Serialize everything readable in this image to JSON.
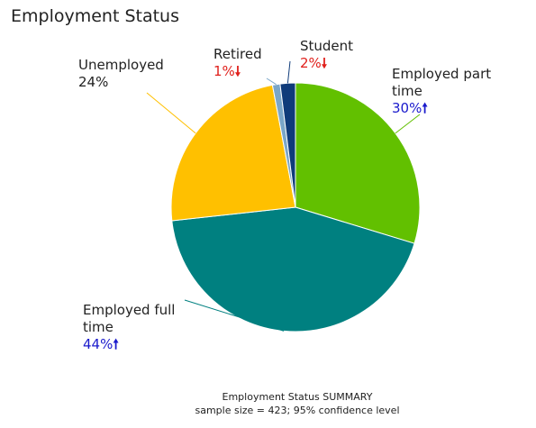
{
  "chart_data": {
    "type": "pie",
    "title": "Employment Status",
    "slices": [
      {
        "label": "Employed part time",
        "value": 30,
        "display": "30%",
        "trend": "up",
        "color": "#62c000"
      },
      {
        "label": "Employed full time",
        "value": 44,
        "display": "44%",
        "trend": "up",
        "color": "#008080"
      },
      {
        "label": "Unemployed",
        "value": 24,
        "display": "24%",
        "trend": "none",
        "color": "#ffc000"
      },
      {
        "label": "Retired",
        "value": 1,
        "display": "1%",
        "trend": "down",
        "color": "#7aa6c8"
      },
      {
        "label": "Student",
        "value": 2,
        "display": "2%",
        "trend": "down",
        "color": "#0f3b7a"
      }
    ],
    "arrows": {
      "up": "🠕",
      "down": "🠗"
    },
    "footer": {
      "line1": "Employment Status SUMMARY",
      "line2": "sample size = 423; 95% confidence level"
    }
  }
}
